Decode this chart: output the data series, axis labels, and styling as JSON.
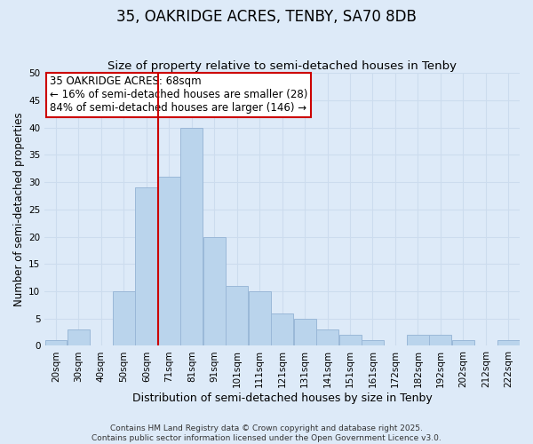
{
  "title": "35, OAKRIDGE ACRES, TENBY, SA70 8DB",
  "subtitle": "Size of property relative to semi-detached houses in Tenby",
  "xlabel": "Distribution of semi-detached houses by size in Tenby",
  "ylabel": "Number of semi-detached properties",
  "tick_labels": [
    "20sqm",
    "30sqm",
    "40sqm",
    "50sqm",
    "60sqm",
    "71sqm",
    "81sqm",
    "91sqm",
    "101sqm",
    "111sqm",
    "121sqm",
    "131sqm",
    "141sqm",
    "151sqm",
    "161sqm",
    "172sqm",
    "182sqm",
    "192sqm",
    "202sqm",
    "212sqm",
    "222sqm"
  ],
  "bar_heights": [
    1,
    3,
    0,
    10,
    29,
    31,
    40,
    20,
    11,
    10,
    6,
    5,
    3,
    2,
    1,
    0,
    2,
    2,
    1,
    0,
    1
  ],
  "bar_color": "#bad4ec",
  "bar_edgecolor": "#9ab8d8",
  "property_line_idx": 5,
  "property_line_color": "#cc0000",
  "annotation_text": "35 OAKRIDGE ACRES: 68sqm\n← 16% of semi-detached houses are smaller (28)\n84% of semi-detached houses are larger (146) →",
  "annotation_box_facecolor": "#ffffff",
  "annotation_box_edgecolor": "#cc0000",
  "ylim": [
    0,
    50
  ],
  "yticks": [
    0,
    5,
    10,
    15,
    20,
    25,
    30,
    35,
    40,
    45,
    50
  ],
  "grid_color": "#ccdcee",
  "background_color": "#ddeaf8",
  "footer_text": "Contains HM Land Registry data © Crown copyright and database right 2025.\nContains public sector information licensed under the Open Government Licence v3.0.",
  "title_fontsize": 12,
  "subtitle_fontsize": 9.5,
  "xlabel_fontsize": 9,
  "ylabel_fontsize": 8.5,
  "tick_fontsize": 7.5,
  "annotation_fontsize": 8.5,
  "footer_fontsize": 6.5
}
